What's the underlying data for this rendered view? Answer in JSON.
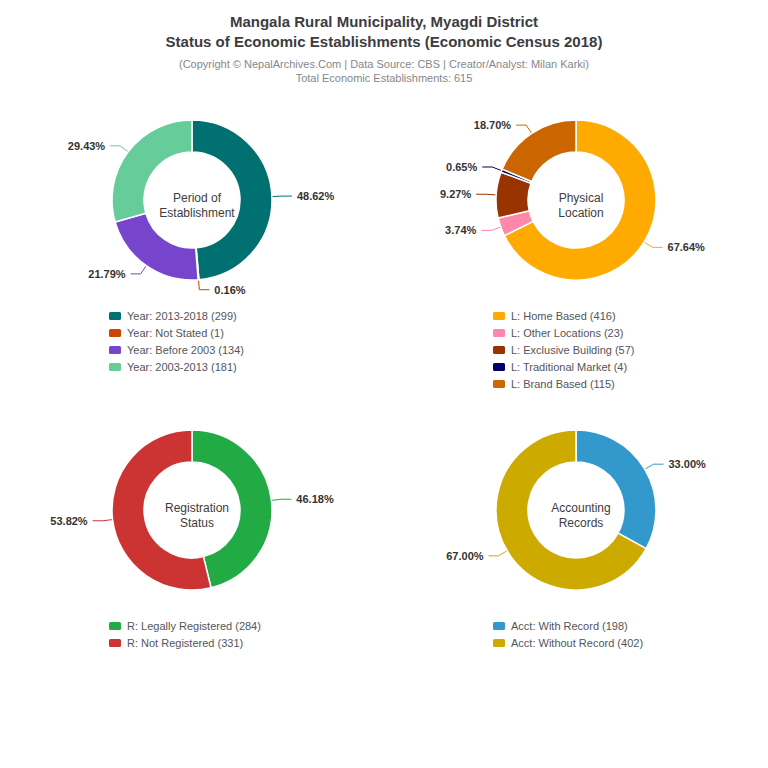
{
  "title": "Mangala Rural Municipality, Myagdi District\nStatus of Economic Establishments (Economic Census 2018)",
  "subtitle": "(Copyright © NepalArchives.Com | Data Source: CBS | Creator/Analyst: Milan Karki)\nTotal Economic Establishments: 615",
  "chart_data": [
    {
      "type": "pie",
      "title": "Period of\nEstablishment",
      "categories": [
        "Year: 2013-2018 (299)",
        "Year: Not Stated (1)",
        "Year: Before 2003 (134)",
        "Year: 2003-2013 (181)"
      ],
      "values": [
        48.62,
        0.16,
        21.79,
        29.43
      ],
      "value_labels": [
        "48.62%",
        "0.16%",
        "21.79%",
        "29.43%"
      ],
      "colors": [
        "#007070",
        "#cc4400",
        "#7744cc",
        "#66cc99"
      ],
      "data_labels": true,
      "legend": "bottom"
    },
    {
      "type": "pie",
      "title": "Physical\nLocation",
      "categories": [
        "L: Home Based (416)",
        "L: Other Locations (23)",
        "L: Exclusive Building (57)",
        "L: Traditional Market (4)",
        "L: Brand Based (115)"
      ],
      "values": [
        67.64,
        3.74,
        9.27,
        0.65,
        18.7
      ],
      "value_labels": [
        "67.64%",
        "3.74%",
        "9.27%",
        "0.65%",
        "18.70%"
      ],
      "colors": [
        "#ffaa00",
        "#ff88aa",
        "#993300",
        "#000066",
        "#cc6600"
      ],
      "data_labels": true,
      "legend": "bottom"
    },
    {
      "type": "pie",
      "title": "Registration\nStatus",
      "categories": [
        "R: Legally Registered (284)",
        "R: Not Registered (331)"
      ],
      "values": [
        46.18,
        53.82
      ],
      "value_labels": [
        "46.18%",
        "53.82%"
      ],
      "colors": [
        "#22aa44",
        "#cc3333"
      ],
      "data_labels": true,
      "legend": "bottom"
    },
    {
      "type": "pie",
      "title": "Accounting\nRecords",
      "categories": [
        "Acct: With Record (198)",
        "Acct: Without Record (402)"
      ],
      "values": [
        33.0,
        67.0
      ],
      "value_labels": [
        "33.00%",
        "67.00%"
      ],
      "colors": [
        "#3399cc",
        "#ccaa00"
      ],
      "data_labels": true,
      "legend": "bottom"
    }
  ]
}
